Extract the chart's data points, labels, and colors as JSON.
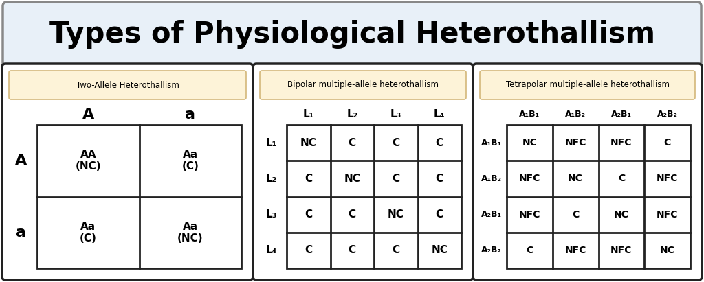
{
  "title": "Types of Physiological Heterothallism",
  "title_bg": "#e8f0f8",
  "title_fontsize": 30,
  "outer_bg": "#ffffff",
  "panel_bg": "#ffffff",
  "header_bg": "#fdf3d8",
  "header_border": "#d4b87a",
  "panel_border": "#222222",
  "panels": [
    {
      "title": "Two-Allele Heterothallism",
      "col_headers": [
        "A",
        "a"
      ],
      "row_headers": [
        "A",
        "a"
      ],
      "col_header_fontsize": 16,
      "row_header_fontsize": 16,
      "cell_fontsize": 11,
      "cells": [
        [
          "AA\n(NC)",
          "Aa\n(C)"
        ],
        [
          "Aa\n(C)",
          "Aa\n(NC)"
        ]
      ]
    },
    {
      "title": "Bipolar multiple-allele heterothallism",
      "col_headers": [
        "L₁",
        "L₂",
        "L₃",
        "L₄"
      ],
      "row_headers": [
        "L₁",
        "L₂",
        "L₃",
        "L₄"
      ],
      "col_header_fontsize": 11,
      "row_header_fontsize": 11,
      "cell_fontsize": 11,
      "cells": [
        [
          "NC",
          "C",
          "C",
          "C"
        ],
        [
          "C",
          "NC",
          "C",
          "C"
        ],
        [
          "C",
          "C",
          "NC",
          "C"
        ],
        [
          "C",
          "C",
          "C",
          "NC"
        ]
      ]
    },
    {
      "title": "Tetrapolar multiple-allele heterothallism",
      "col_headers": [
        "A₁B₁",
        "A₁B₂",
        "A₂B₁",
        "A₂B₂"
      ],
      "row_headers": [
        "A₁B₁",
        "A₁B₂",
        "A₂B₁",
        "A₂B₂"
      ],
      "col_header_fontsize": 9,
      "row_header_fontsize": 9,
      "cell_fontsize": 10,
      "cells": [
        [
          "NC",
          "NFC",
          "NFC",
          "C"
        ],
        [
          "NFC",
          "NC",
          "C",
          "NFC"
        ],
        [
          "NFC",
          "C",
          "NC",
          "NFC"
        ],
        [
          "C",
          "NFC",
          "NFC",
          "NC"
        ]
      ]
    }
  ]
}
